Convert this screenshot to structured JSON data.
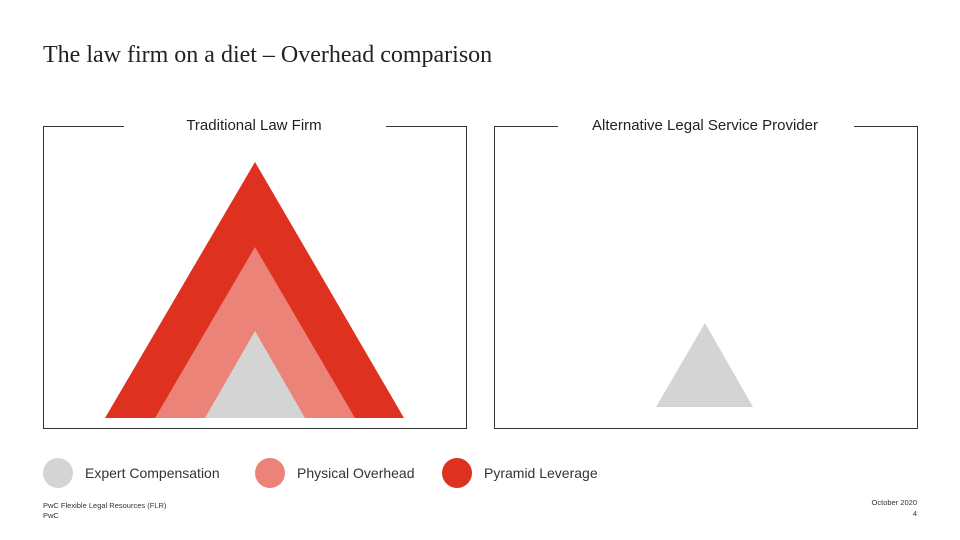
{
  "slide": {
    "title": "The law firm on a diet – Overhead comparison"
  },
  "panels": {
    "left": {
      "label": "Traditional Law Firm"
    },
    "right": {
      "label": "Alternative Legal Service Provider"
    }
  },
  "legend": [
    {
      "label": "Expert Compensation",
      "color": "#d4d4d4"
    },
    {
      "label": "Physical Overhead",
      "color": "#ec8379"
    },
    {
      "label": "Pyramid Leverage",
      "color": "#df3120"
    }
  ],
  "footer": {
    "source_line1": "PwC Flexible Legal Resources (FLR)",
    "source_line2": "PwC",
    "date": "October 2020",
    "page": "4"
  },
  "colors": {
    "expert": "#d4d4d4",
    "overhead": "#ec8379",
    "leverage": "#df3120"
  }
}
